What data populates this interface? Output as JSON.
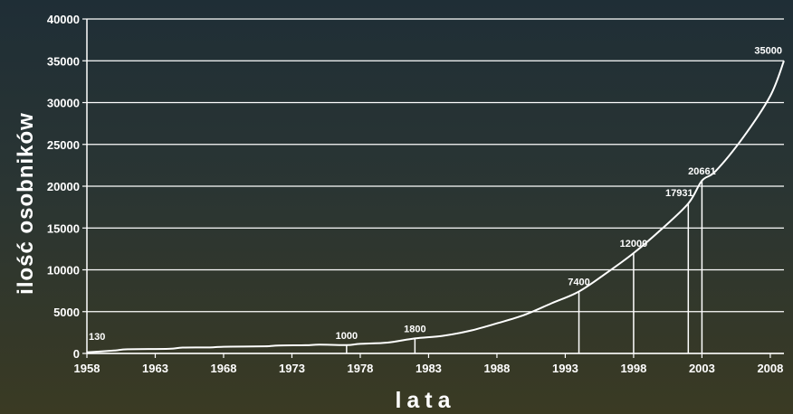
{
  "chart_data": {
    "type": "line",
    "xlabel": "lata",
    "ylabel": "ilość osobników",
    "xlim": [
      1958,
      2009
    ],
    "ylim": [
      0,
      40000
    ],
    "x_ticks": [
      "1958",
      "1963",
      "1968",
      "1973",
      "1978",
      "1983",
      "1988",
      "1993",
      "1998",
      "2003",
      "2008"
    ],
    "y_ticks": [
      "0",
      "5000",
      "10000",
      "15000",
      "20000",
      "25000",
      "30000",
      "35000",
      "40000"
    ],
    "grid": true,
    "colors": {
      "line": "#ffffff",
      "grid": "#ffffff",
      "axis": "#ffffff"
    },
    "series": [
      {
        "x": [
          1958,
          1960,
          1961,
          1964,
          1965,
          1967,
          1968,
          1971,
          1972,
          1974,
          1975,
          1977,
          1978,
          1980,
          1982,
          1984,
          1986,
          1988,
          1990,
          1992,
          1994,
          1996,
          1998,
          2000,
          2002,
          2003,
          2004,
          2006,
          2008,
          2009
        ],
        "y": [
          130,
          350,
          500,
          550,
          700,
          720,
          800,
          850,
          950,
          980,
          1050,
          1000,
          1150,
          1300,
          1800,
          2100,
          2700,
          3600,
          4600,
          6000,
          7400,
          9600,
          12000,
          14800,
          17931,
          20661,
          21800,
          25800,
          30800,
          35000
        ]
      }
    ],
    "annotations": [
      {
        "x": 1958,
        "y": 130,
        "label": "130",
        "drop_line": false
      },
      {
        "x": 1977,
        "y": 1000,
        "label": "1000",
        "drop_line": true
      },
      {
        "x": 1982,
        "y": 1800,
        "label": "1800",
        "drop_line": true
      },
      {
        "x": 1994,
        "y": 7400,
        "label": "7400",
        "drop_line": true
      },
      {
        "x": 1998,
        "y": 12000,
        "label": "12000",
        "drop_line": true
      },
      {
        "x": 2002,
        "y": 17931,
        "label": "17931",
        "drop_line": true
      },
      {
        "x": 2003,
        "y": 20661,
        "label": "20661",
        "drop_line": true
      },
      {
        "x": 2009,
        "y": 35000,
        "label": "35000",
        "drop_line": false
      }
    ]
  }
}
